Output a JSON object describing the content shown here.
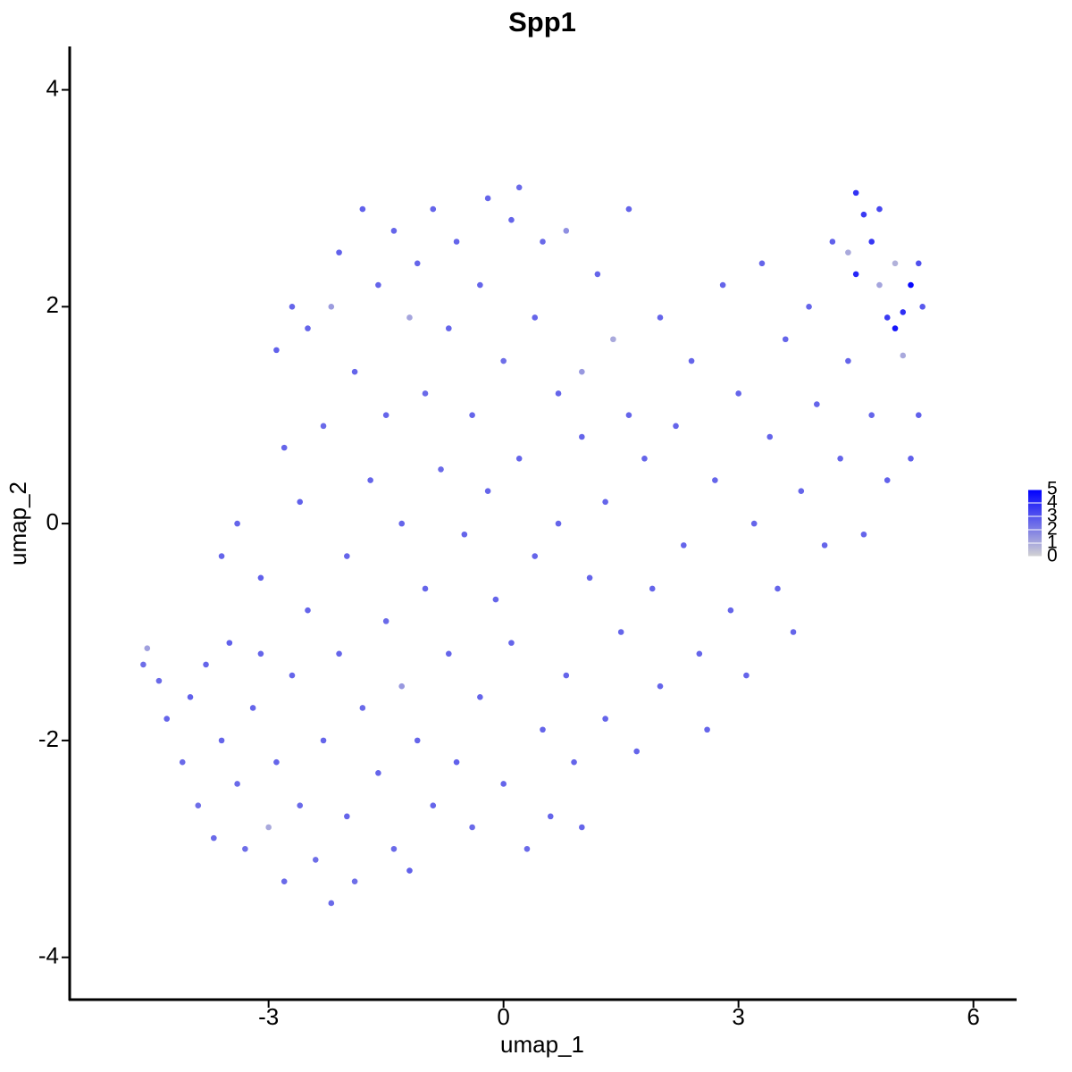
{
  "chart_data": {
    "type": "scatter",
    "title": "Spp1",
    "x_label": "umap_1",
    "y_label": "umap_2",
    "xlim": [
      -5.54,
      6.54
    ],
    "xticks": [
      -3,
      0,
      3,
      6
    ],
    "ylim": [
      -4.39,
      4.4
    ],
    "yticks": [
      -4,
      -2,
      0,
      2,
      4
    ],
    "color_scale": {
      "low": "#d3d3d3",
      "high": "#0000ff",
      "lim": [
        0,
        5
      ],
      "ticks": [
        0,
        1,
        2,
        3,
        4,
        5
      ]
    },
    "series": [
      {
        "x": [
          -4.6,
          -4.55,
          -4.4,
          -4.3,
          -4.1,
          -4.0,
          -3.9,
          -3.8,
          -3.7,
          -3.6,
          -3.5,
          -3.4,
          -3.3,
          -3.2,
          -3.1,
          -3.0,
          -2.9,
          -2.8,
          -2.7,
          -2.6,
          -2.6,
          -2.5,
          -2.5,
          -2.4,
          -2.3,
          -2.3,
          -2.2,
          -2.2,
          -2.1,
          -2.1,
          -2.0,
          -2.0,
          -1.9,
          -1.9,
          -1.8,
          -1.8,
          -1.7,
          -1.6,
          -1.6,
          -1.5,
          -1.5,
          -1.4,
          -1.4,
          -1.3,
          -1.3,
          -1.2,
          -1.2,
          -1.1,
          -1.1,
          -1.0,
          -1.0,
          -0.9,
          -0.9,
          -0.8,
          -0.7,
          -0.7,
          -0.6,
          -0.6,
          -0.5,
          -0.4,
          -0.4,
          -0.3,
          -0.3,
          -0.2,
          -0.2,
          -0.1,
          0.0,
          0.0,
          0.1,
          0.1,
          0.2,
          0.2,
          0.3,
          0.4,
          0.4,
          0.5,
          0.5,
          0.6,
          0.7,
          0.7,
          0.8,
          0.8,
          0.9,
          1.0,
          1.0,
          1.0,
          1.1,
          1.2,
          1.3,
          1.3,
          1.4,
          1.5,
          1.6,
          1.6,
          1.7,
          1.8,
          1.9,
          2.0,
          2.0,
          2.2,
          2.3,
          2.4,
          2.5,
          2.6,
          2.7,
          2.8,
          2.9,
          3.0,
          3.1,
          3.2,
          3.3,
          3.4,
          3.5,
          3.6,
          3.7,
          3.8,
          3.9,
          4.0,
          4.1,
          4.2,
          4.3,
          4.4,
          4.4,
          4.5,
          4.5,
          4.6,
          4.6,
          4.7,
          4.7,
          4.8,
          4.8,
          4.9,
          4.9,
          5.0,
          5.0,
          5.1,
          5.1,
          5.2,
          5.2,
          5.3,
          5.35,
          5.3,
          -2.9,
          -2.7,
          -2.8,
          -3.4,
          -3.1,
          -3.6
        ],
        "values": [
          -1.3,
          -1.15,
          -1.45,
          -1.8,
          -2.2,
          -1.6,
          -2.6,
          -1.3,
          -2.9,
          -2.0,
          -1.1,
          -2.4,
          -3.0,
          -1.7,
          -0.5,
          -2.8,
          -2.2,
          -3.3,
          -1.4,
          0.2,
          -2.6,
          1.8,
          -0.8,
          -3.1,
          -2.0,
          0.9,
          2.0,
          -3.5,
          -1.2,
          2.5,
          -0.3,
          -2.7,
          1.4,
          -3.3,
          2.9,
          -1.7,
          0.4,
          -2.3,
          2.2,
          -0.9,
          1.0,
          2.7,
          -3.0,
          -1.5,
          0.0,
          1.9,
          -3.2,
          2.4,
          -2.0,
          -0.6,
          1.2,
          2.9,
          -2.6,
          0.5,
          -1.2,
          1.8,
          2.6,
          -2.2,
          -0.1,
          1.0,
          -2.8,
          2.2,
          -1.6,
          3.0,
          0.3,
          -0.7,
          1.5,
          -2.4,
          2.8,
          -1.1,
          3.1,
          0.6,
          -3.0,
          -0.3,
          1.9,
          2.6,
          -1.9,
          -2.7,
          1.2,
          0.0,
          2.7,
          -1.4,
          -2.2,
          0.8,
          1.4,
          -2.8,
          -0.5,
          2.3,
          -1.8,
          0.2,
          1.7,
          -1.0,
          2.9,
          1.0,
          -2.1,
          0.6,
          -0.6,
          1.9,
          -1.5,
          0.9,
          -0.2,
          1.5,
          -1.2,
          -1.9,
          0.4,
          2.2,
          -0.8,
          1.2,
          -1.4,
          0.0,
          2.4,
          0.8,
          -0.6,
          1.7,
          -1.0,
          0.3,
          2.0,
          1.1,
          -0.2,
          2.6,
          0.6,
          1.5,
          2.5,
          3.05,
          2.3,
          2.85,
          -0.1,
          2.6,
          1.0,
          2.9,
          2.2,
          1.9,
          0.4,
          1.8,
          2.4,
          1.95,
          1.55,
          2.2,
          0.6,
          2.4,
          2.0,
          1.0,
          1.6,
          2.0,
          0.7,
          0.0,
          -1.2,
          -0.3
        ],
        "expression": [
          2.4,
          1.2,
          2.5,
          2.6,
          2.5,
          2.7,
          2.4,
          2.6,
          2.5,
          2.6,
          2.7,
          2.5,
          2.4,
          2.6,
          2.7,
          1.0,
          2.6,
          2.5,
          2.6,
          2.7,
          2.5,
          2.6,
          2.6,
          2.4,
          2.6,
          2.5,
          1.3,
          2.5,
          2.6,
          2.7,
          2.6,
          2.6,
          2.6,
          2.4,
          2.7,
          2.5,
          2.6,
          2.6,
          2.6,
          2.5,
          2.6,
          2.6,
          2.5,
          1.4,
          2.6,
          1.1,
          2.7,
          2.6,
          2.6,
          2.6,
          2.5,
          2.6,
          2.6,
          2.5,
          2.6,
          2.6,
          2.6,
          2.7,
          2.6,
          2.6,
          2.5,
          2.6,
          2.6,
          2.6,
          2.6,
          2.6,
          2.4,
          2.6,
          2.6,
          2.6,
          2.5,
          2.6,
          2.5,
          2.6,
          2.6,
          2.5,
          2.6,
          2.6,
          2.6,
          2.6,
          1.6,
          2.6,
          2.6,
          2.6,
          1.4,
          2.6,
          2.6,
          2.6,
          2.6,
          2.6,
          1.0,
          2.6,
          2.6,
          2.6,
          2.6,
          2.6,
          2.6,
          2.6,
          2.6,
          2.6,
          2.6,
          2.6,
          2.6,
          2.6,
          2.6,
          2.6,
          2.6,
          2.6,
          2.6,
          2.6,
          2.6,
          2.6,
          2.6,
          2.6,
          2.6,
          2.6,
          2.6,
          2.6,
          2.6,
          2.7,
          2.6,
          2.6,
          1.0,
          3.8,
          4.1,
          3.6,
          2.6,
          3.7,
          2.6,
          3.3,
          1.1,
          3.6,
          2.7,
          4.5,
          0.8,
          3.9,
          1.0,
          4.8,
          2.7,
          3.1,
          2.9,
          2.7,
          2.7,
          2.6,
          2.6,
          2.6,
          2.6,
          2.6
        ]
      }
    ]
  }
}
